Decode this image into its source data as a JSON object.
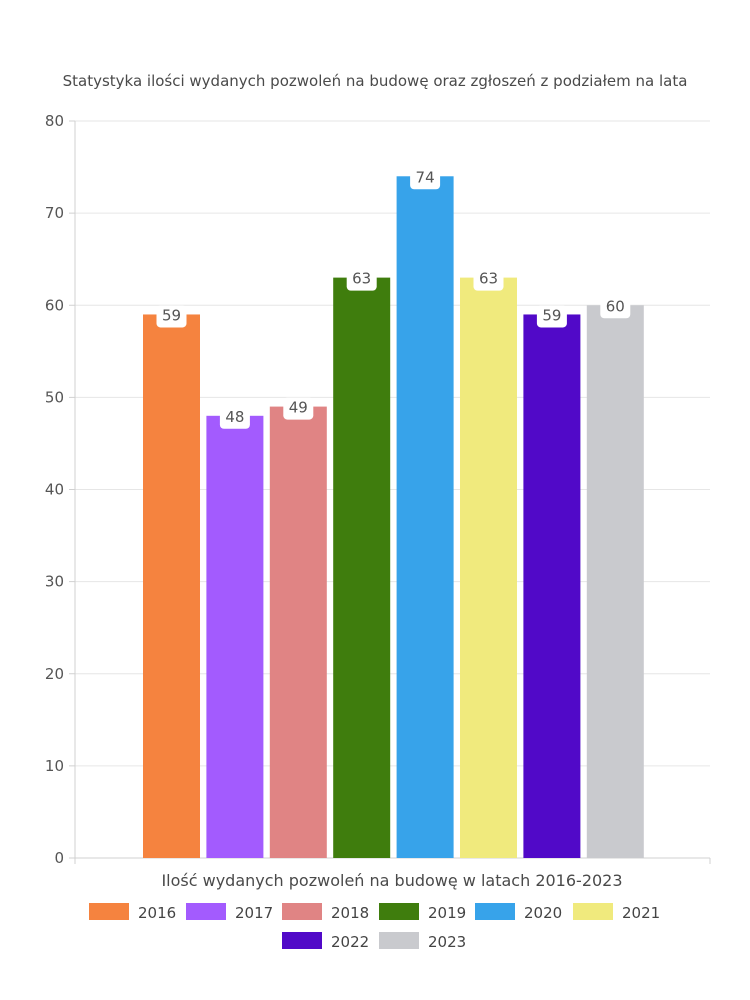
{
  "chart_data": {
    "type": "bar",
    "title": "Statystyka ilości wydanych pozwoleń na budowę oraz zgłoszeń z podziałem na lata",
    "xlabel": "Ilość wydanych pozwoleń na budowę w latach 2016-2023",
    "ylabel": "",
    "ylim": [
      0,
      80
    ],
    "yticks": [
      0,
      10,
      20,
      30,
      40,
      50,
      60,
      70,
      80
    ],
    "grid": true,
    "legend_position": "bottom",
    "categories": [
      "2016",
      "2017",
      "2018",
      "2019",
      "2020",
      "2021",
      "2022",
      "2023"
    ],
    "values": [
      59,
      48,
      49,
      63,
      74,
      63,
      59,
      60
    ],
    "colors": [
      "#F5833F",
      "#A35BFE",
      "#E08484",
      "#3F7D0D",
      "#37A3EA",
      "#F0EA7D",
      "#5109C8",
      "#C9CACE"
    ],
    "data_labels": [
      "59",
      "48",
      "49",
      "63",
      "74",
      "63",
      "59",
      "60"
    ]
  }
}
